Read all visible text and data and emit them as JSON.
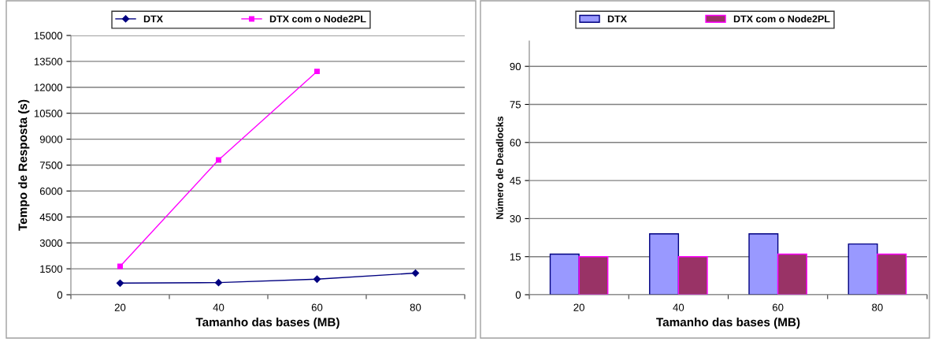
{
  "chart_data": [
    {
      "type": "line",
      "xlabel": "Tamanho das bases (MB)",
      "ylabel": "Tempo de Resposta (s)",
      "categories": [
        "20",
        "40",
        "60",
        "80"
      ],
      "series": [
        {
          "name": "DTX",
          "color": "#000080",
          "marker": "diamond",
          "values": [
            670,
            700,
            900,
            1250
          ]
        },
        {
          "name": "DTX com o Node2PL",
          "color": "#ff00ff",
          "marker": "square",
          "values": [
            1640,
            7800,
            12920,
            null
          ]
        }
      ],
      "ylim": [
        0,
        15000
      ],
      "yticks": [
        0,
        1500,
        3000,
        4500,
        6000,
        7500,
        9000,
        10500,
        12000,
        13500,
        15000
      ],
      "grid": "y",
      "legend": "top",
      "line_style": "solid"
    },
    {
      "type": "bar",
      "xlabel": "Tamanho das bases (MB)",
      "ylabel": "Número de Deadlocks",
      "categories": [
        "20",
        "40",
        "60",
        "80"
      ],
      "series": [
        {
          "name": "DTX",
          "color": "#9999ff",
          "values": [
            16,
            24,
            24,
            20
          ]
        },
        {
          "name": "DTX com o Node2PL",
          "color": "#993366",
          "values": [
            15,
            15,
            16,
            16
          ]
        }
      ],
      "ylim": [
        0,
        100
      ],
      "yticks": [
        0,
        15,
        30,
        45,
        60,
        75,
        90
      ],
      "grid": "y",
      "legend": "top"
    }
  ]
}
